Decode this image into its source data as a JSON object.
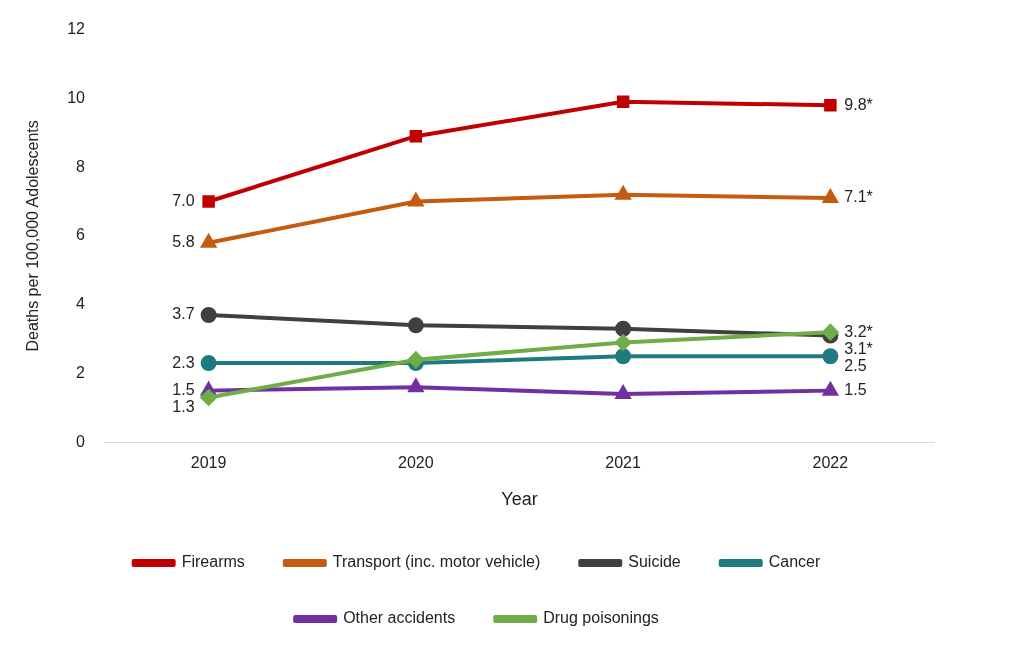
{
  "chart_data": {
    "type": "line",
    "xlabel": "Year",
    "ylabel": "Deaths per 100,000 Adolescents",
    "categories": [
      "2019",
      "2020",
      "2021",
      "2022"
    ],
    "ylim": [
      0,
      12
    ],
    "yticks": [
      0,
      2,
      4,
      6,
      8,
      10,
      12
    ],
    "grid": false,
    "legend": "bottom",
    "series": [
      {
        "name": "Firearms",
        "color": "#c00000",
        "marker": "square",
        "values": [
          7.0,
          8.9,
          9.9,
          9.8
        ],
        "value_labels": [
          "7.0",
          null,
          null,
          "9.8*"
        ]
      },
      {
        "name": "Transport (inc. motor vehicle)",
        "color": "#c55a11",
        "marker": "triangle",
        "values": [
          5.8,
          7.0,
          7.2,
          7.1
        ],
        "value_labels": [
          "5.8",
          null,
          null,
          "7.1*"
        ]
      },
      {
        "name": "Suicide",
        "color": "#404040",
        "marker": "circle",
        "values": [
          3.7,
          3.4,
          3.3,
          3.1
        ],
        "value_labels": [
          "3.7",
          null,
          null,
          "3.1*"
        ]
      },
      {
        "name": "Cancer",
        "color": "#1f7a80",
        "marker": "circle",
        "values": [
          2.3,
          2.3,
          2.5,
          2.5
        ],
        "value_labels": [
          "2.3",
          null,
          null,
          "2.5"
        ]
      },
      {
        "name": "Other accidents",
        "color": "#7030a0",
        "marker": "triangle",
        "values": [
          1.5,
          1.6,
          1.4,
          1.5
        ],
        "value_labels": [
          "1.5",
          null,
          null,
          "1.5"
        ]
      },
      {
        "name": "Drug poisonings",
        "color": "#70ad47",
        "marker": "diamond",
        "values": [
          1.3,
          2.4,
          2.9,
          3.2
        ],
        "value_labels": [
          "1.3",
          null,
          null,
          "3.2*"
        ]
      }
    ]
  }
}
